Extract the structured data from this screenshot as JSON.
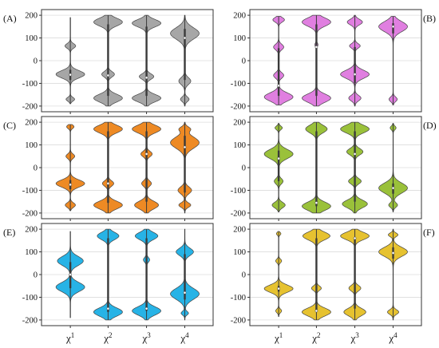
{
  "chart_data": {
    "type": "violin",
    "categories": [
      "χ1",
      "χ2",
      "χ3",
      "χ4"
    ],
    "yticks": [
      200,
      100,
      0,
      -100,
      -200
    ],
    "ylim": [
      -225,
      225
    ],
    "grid": "horizontal",
    "panels": [
      {
        "label": "(A)",
        "label_side": "left",
        "color": "#a6a6a6",
        "violins": [
          {
            "modes": [
              [
                -60,
                0.95,
                16
              ],
              [
                65,
                0.35,
                10
              ],
              [
                -170,
                0.28,
                8
              ]
            ],
            "range": [
              -190,
              190
            ],
            "median": -62,
            "q1": -85,
            "q3": -40
          },
          {
            "modes": [
              [
                170,
                0.8,
                17
              ],
              [
                -165,
                0.8,
                17
              ],
              [
                -60,
                0.35,
                12
              ]
            ],
            "range": [
              -200,
              200
            ],
            "median": -65,
            "q1": -155,
            "q3": 160
          },
          {
            "modes": [
              [
                165,
                0.8,
                16
              ],
              [
                -165,
                0.8,
                16
              ],
              [
                -70,
                0.4,
                12
              ]
            ],
            "range": [
              -200,
              200
            ],
            "median": -75,
            "q1": -155,
            "q3": 150
          },
          {
            "modes": [
              [
                120,
                0.85,
                25
              ],
              [
                -90,
                0.35,
                15
              ],
              [
                -170,
                0.25,
                10
              ]
            ],
            "range": [
              -200,
              200
            ],
            "median": 100,
            "q1": -85,
            "q3": 140
          }
        ]
      },
      {
        "label": "(B)",
        "label_side": "right",
        "color": "#e07fe0",
        "violins": [
          {
            "modes": [
              [
                -160,
                1.0,
                18
              ],
              [
                -65,
                0.35,
                12
              ],
              [
                60,
                0.35,
                12
              ],
              [
                180,
                0.4,
                10
              ]
            ],
            "range": [
              -195,
              195
            ],
            "median": -110,
            "q1": -155,
            "q3": 55
          },
          {
            "modes": [
              [
                170,
                1.0,
                18
              ],
              [
                -165,
                1.0,
                18
              ],
              [
                70,
                0.1,
                8
              ]
            ],
            "range": [
              -200,
              200
            ],
            "median": 60,
            "q1": -155,
            "q3": 160
          },
          {
            "modes": [
              [
                -60,
                0.95,
                18
              ],
              [
                170,
                0.5,
                12
              ],
              [
                -165,
                0.4,
                12
              ],
              [
                65,
                0.35,
                10
              ]
            ],
            "range": [
              -200,
              200
            ],
            "median": -60,
            "q1": -100,
            "q3": 60
          },
          {
            "modes": [
              [
                150,
                1.0,
                22
              ],
              [
                -170,
                0.28,
                10
              ]
            ],
            "range": [
              -195,
              195
            ],
            "median": 150,
            "q1": 120,
            "q3": 165
          }
        ]
      },
      {
        "label": "(C)",
        "label_side": "left",
        "color": "#ee8a24",
        "violins": [
          {
            "modes": [
              [
                -70,
                1.0,
                16
              ],
              [
                -165,
                0.35,
                10
              ],
              [
                50,
                0.3,
                10
              ],
              [
                180,
                0.25,
                8
              ]
            ],
            "range": [
              -190,
              190
            ],
            "median": -75,
            "q1": -95,
            "q3": -55
          },
          {
            "modes": [
              [
                170,
                0.9,
                17
              ],
              [
                -165,
                0.9,
                17
              ],
              [
                -70,
                0.35,
                12
              ]
            ],
            "range": [
              -200,
              200
            ],
            "median": -70,
            "q1": -155,
            "q3": 160
          },
          {
            "modes": [
              [
                170,
                0.9,
                17
              ],
              [
                -165,
                0.75,
                17
              ],
              [
                60,
                0.35,
                12
              ],
              [
                -70,
                0.3,
                12
              ]
            ],
            "range": [
              -200,
              200
            ],
            "median": 60,
            "q1": -150,
            "q3": 160
          },
          {
            "modes": [
              [
                110,
                0.85,
                25
              ],
              [
                -100,
                0.4,
                15
              ],
              [
                -165,
                0.35,
                10
              ],
              [
                170,
                0.3,
                10
              ]
            ],
            "range": [
              -200,
              200
            ],
            "median": 90,
            "q1": -110,
            "q3": 140
          }
        ]
      },
      {
        "label": "(D)",
        "label_side": "right",
        "color": "#9ac13a",
        "violins": [
          {
            "modes": [
              [
                60,
                1.0,
                20
              ],
              [
                -165,
                0.45,
                12
              ],
              [
                -60,
                0.3,
                12
              ],
              [
                175,
                0.25,
                8
              ]
            ],
            "range": [
              -195,
              195
            ],
            "median": 40,
            "q1": -60,
            "q3": 75
          },
          {
            "modes": [
              [
                -170,
                1.0,
                18
              ],
              [
                170,
                0.75,
                17
              ]
            ],
            "range": [
              -200,
              200
            ],
            "median": -155,
            "q1": -170,
            "q3": 160
          },
          {
            "modes": [
              [
                170,
                0.8,
                17
              ],
              [
                -160,
                0.7,
                17
              ],
              [
                70,
                0.45,
                14
              ],
              [
                -60,
                0.35,
                12
              ]
            ],
            "range": [
              -200,
              200
            ],
            "median": 60,
            "q1": -150,
            "q3": 160
          },
          {
            "modes": [
              [
                -90,
                1.0,
                22
              ],
              [
                175,
                0.2,
                8
              ],
              [
                -165,
                0.3,
                10
              ]
            ],
            "range": [
              -195,
              195
            ],
            "median": -90,
            "q1": -115,
            "q3": -70
          }
        ]
      },
      {
        "label": "(E)",
        "label_side": "left",
        "color": "#27b3e6",
        "violins": [
          {
            "modes": [
              [
                -55,
                1.0,
                20
              ],
              [
                60,
                0.9,
                20
              ]
            ],
            "range": [
              -190,
              190
            ],
            "median": 0,
            "q1": -60,
            "q3": 55
          },
          {
            "modes": [
              [
                -165,
                1.0,
                18
              ],
              [
                170,
                0.75,
                16
              ]
            ],
            "range": [
              -200,
              200
            ],
            "median": -150,
            "q1": -165,
            "q3": 160
          },
          {
            "modes": [
              [
                -160,
                0.95,
                18
              ],
              [
                170,
                0.75,
                16
              ],
              [
                65,
                0.2,
                10
              ]
            ],
            "range": [
              -200,
              200
            ],
            "median": -150,
            "q1": -160,
            "q3": 160
          },
          {
            "modes": [
              [
                -85,
                1.0,
                24
              ],
              [
                100,
                0.6,
                16
              ],
              [
                -170,
                0.25,
                8
              ]
            ],
            "range": [
              -200,
              200
            ],
            "median": -80,
            "q1": -110,
            "q3": 90
          }
        ]
      },
      {
        "label": "(F)",
        "label_side": "right",
        "color": "#e6c230",
        "violins": [
          {
            "modes": [
              [
                -62,
                1.0,
                16
              ],
              [
                60,
                0.2,
                8
              ],
              [
                -160,
                0.2,
                8
              ],
              [
                180,
                0.15,
                6
              ]
            ],
            "range": [
              -185,
              190
            ],
            "median": -62,
            "q1": -75,
            "q3": -50
          },
          {
            "modes": [
              [
                -165,
                0.9,
                17
              ],
              [
                170,
                0.85,
                17
              ],
              [
                -60,
                0.3,
                10
              ]
            ],
            "range": [
              -200,
              200
            ],
            "median": -160,
            "q1": -165,
            "q3": 160
          },
          {
            "modes": [
              [
                170,
                0.85,
                16
              ],
              [
                -165,
                0.65,
                16
              ],
              [
                -60,
                0.35,
                12
              ]
            ],
            "range": [
              -200,
              200
            ],
            "median": 160,
            "q1": -150,
            "q3": 165
          },
          {
            "modes": [
              [
                100,
                0.9,
                20
              ],
              [
                -165,
                0.35,
                10
              ],
              [
                175,
                0.3,
                8
              ]
            ],
            "range": [
              -200,
              200
            ],
            "median": 95,
            "q1": 70,
            "q3": 120
          }
        ]
      }
    ]
  }
}
